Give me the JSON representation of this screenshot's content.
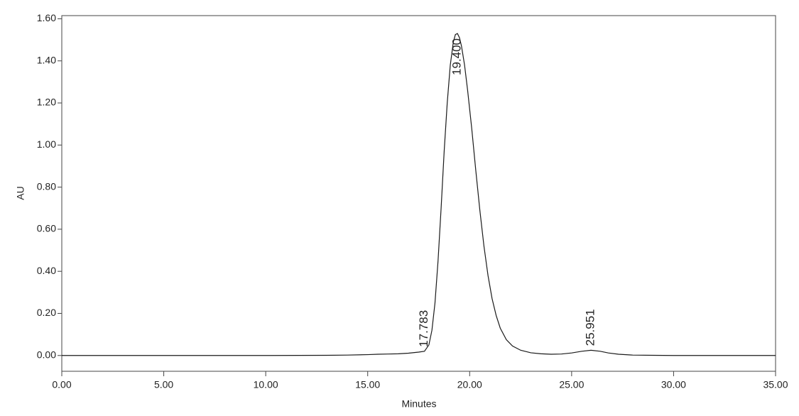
{
  "chart_data": {
    "type": "line",
    "x_label": "Minutes",
    "y_label": "AU",
    "x": [
      0,
      5,
      10,
      13,
      14,
      15,
      15.5,
      16,
      16.5,
      17,
      17.5,
      17.783,
      18.0,
      18.15,
      18.3,
      18.45,
      18.6,
      18.75,
      18.9,
      19.05,
      19.2,
      19.3,
      19.4,
      19.5,
      19.6,
      19.75,
      19.9,
      20.1,
      20.3,
      20.5,
      20.7,
      20.9,
      21.1,
      21.3,
      21.5,
      21.8,
      22.1,
      22.5,
      23.0,
      23.5,
      24.0,
      24.5,
      25.0,
      25.5,
      25.951,
      26.4,
      26.8,
      27.3,
      28.0,
      29.0,
      30.0,
      35
    ],
    "series": [
      {
        "color": "#1a1a1a",
        "values": [
          0,
          0,
          0,
          0.001,
          0.002,
          0.004,
          0.006,
          0.007,
          0.008,
          0.011,
          0.016,
          0.02,
          0.05,
          0.12,
          0.25,
          0.45,
          0.7,
          0.97,
          1.2,
          1.38,
          1.49,
          1.525,
          1.53,
          1.51,
          1.47,
          1.38,
          1.26,
          1.08,
          0.88,
          0.69,
          0.52,
          0.38,
          0.27,
          0.19,
          0.13,
          0.075,
          0.045,
          0.025,
          0.013,
          0.008,
          0.006,
          0.007,
          0.012,
          0.02,
          0.025,
          0.02,
          0.012,
          0.006,
          0.002,
          0.001,
          0,
          0
        ]
      }
    ],
    "annotations": [
      {
        "x": 17.783,
        "text": "17.783"
      },
      {
        "x": 19.4,
        "text": "19.400"
      },
      {
        "x": 25.951,
        "text": "25.951"
      }
    ],
    "xlim": [
      0,
      35
    ],
    "ylim": [
      -0.075,
      1.615
    ],
    "xticks": [
      {
        "value": 0,
        "label": "0.00"
      },
      {
        "value": 5,
        "label": "5.00"
      },
      {
        "value": 10,
        "label": "10.00"
      },
      {
        "value": 15,
        "label": "15.00"
      },
      {
        "value": 20,
        "label": "20.00"
      },
      {
        "value": 25,
        "label": "25.00"
      },
      {
        "value": 30,
        "label": "30.00"
      },
      {
        "value": 35,
        "label": "35.00"
      }
    ],
    "yticks": [
      {
        "value": 0,
        "label": "0.00"
      },
      {
        "value": 0.2,
        "label": "0.20"
      },
      {
        "value": 0.4,
        "label": "0.40"
      },
      {
        "value": 0.6,
        "label": "0.60"
      },
      {
        "value": 0.8,
        "label": "0.80"
      },
      {
        "value": 1.0,
        "label": "1.00"
      },
      {
        "value": 1.2,
        "label": "1.20"
      },
      {
        "value": 1.4,
        "label": "1.40"
      },
      {
        "value": 1.6,
        "label": "1.60"
      }
    ]
  }
}
